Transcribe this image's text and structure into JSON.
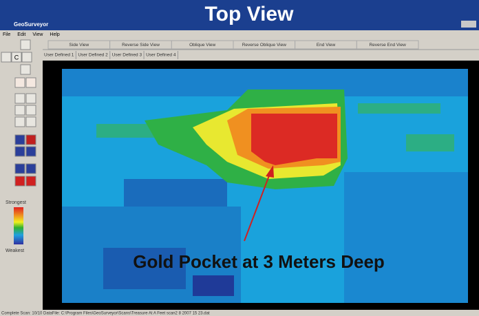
{
  "window_title": "GeoSurveyor",
  "overlay_title": "Top View",
  "menu": [
    "File",
    "Edit",
    "View",
    "Help"
  ],
  "view_tabs": [
    "Side View",
    "Reverse Side View",
    "Oblique View",
    "Reverse Oblique View",
    "End View",
    "Reverse End View"
  ],
  "user_tabs": [
    "User Defined 1",
    "User Defined 2",
    "User Defined 3",
    "User Defined 4"
  ],
  "toolbar_center": "C",
  "legend": {
    "top": "Strongest",
    "bottom": "Weakest"
  },
  "annotation": "Gold Pocket at 3 Meters Deep",
  "status": "Complete Scan: 10/10   DataFile: C:\\Program Files\\GeoSurveyor\\Scans\\Treasure At A Feet scan2 8 2007 15 23.dat"
}
